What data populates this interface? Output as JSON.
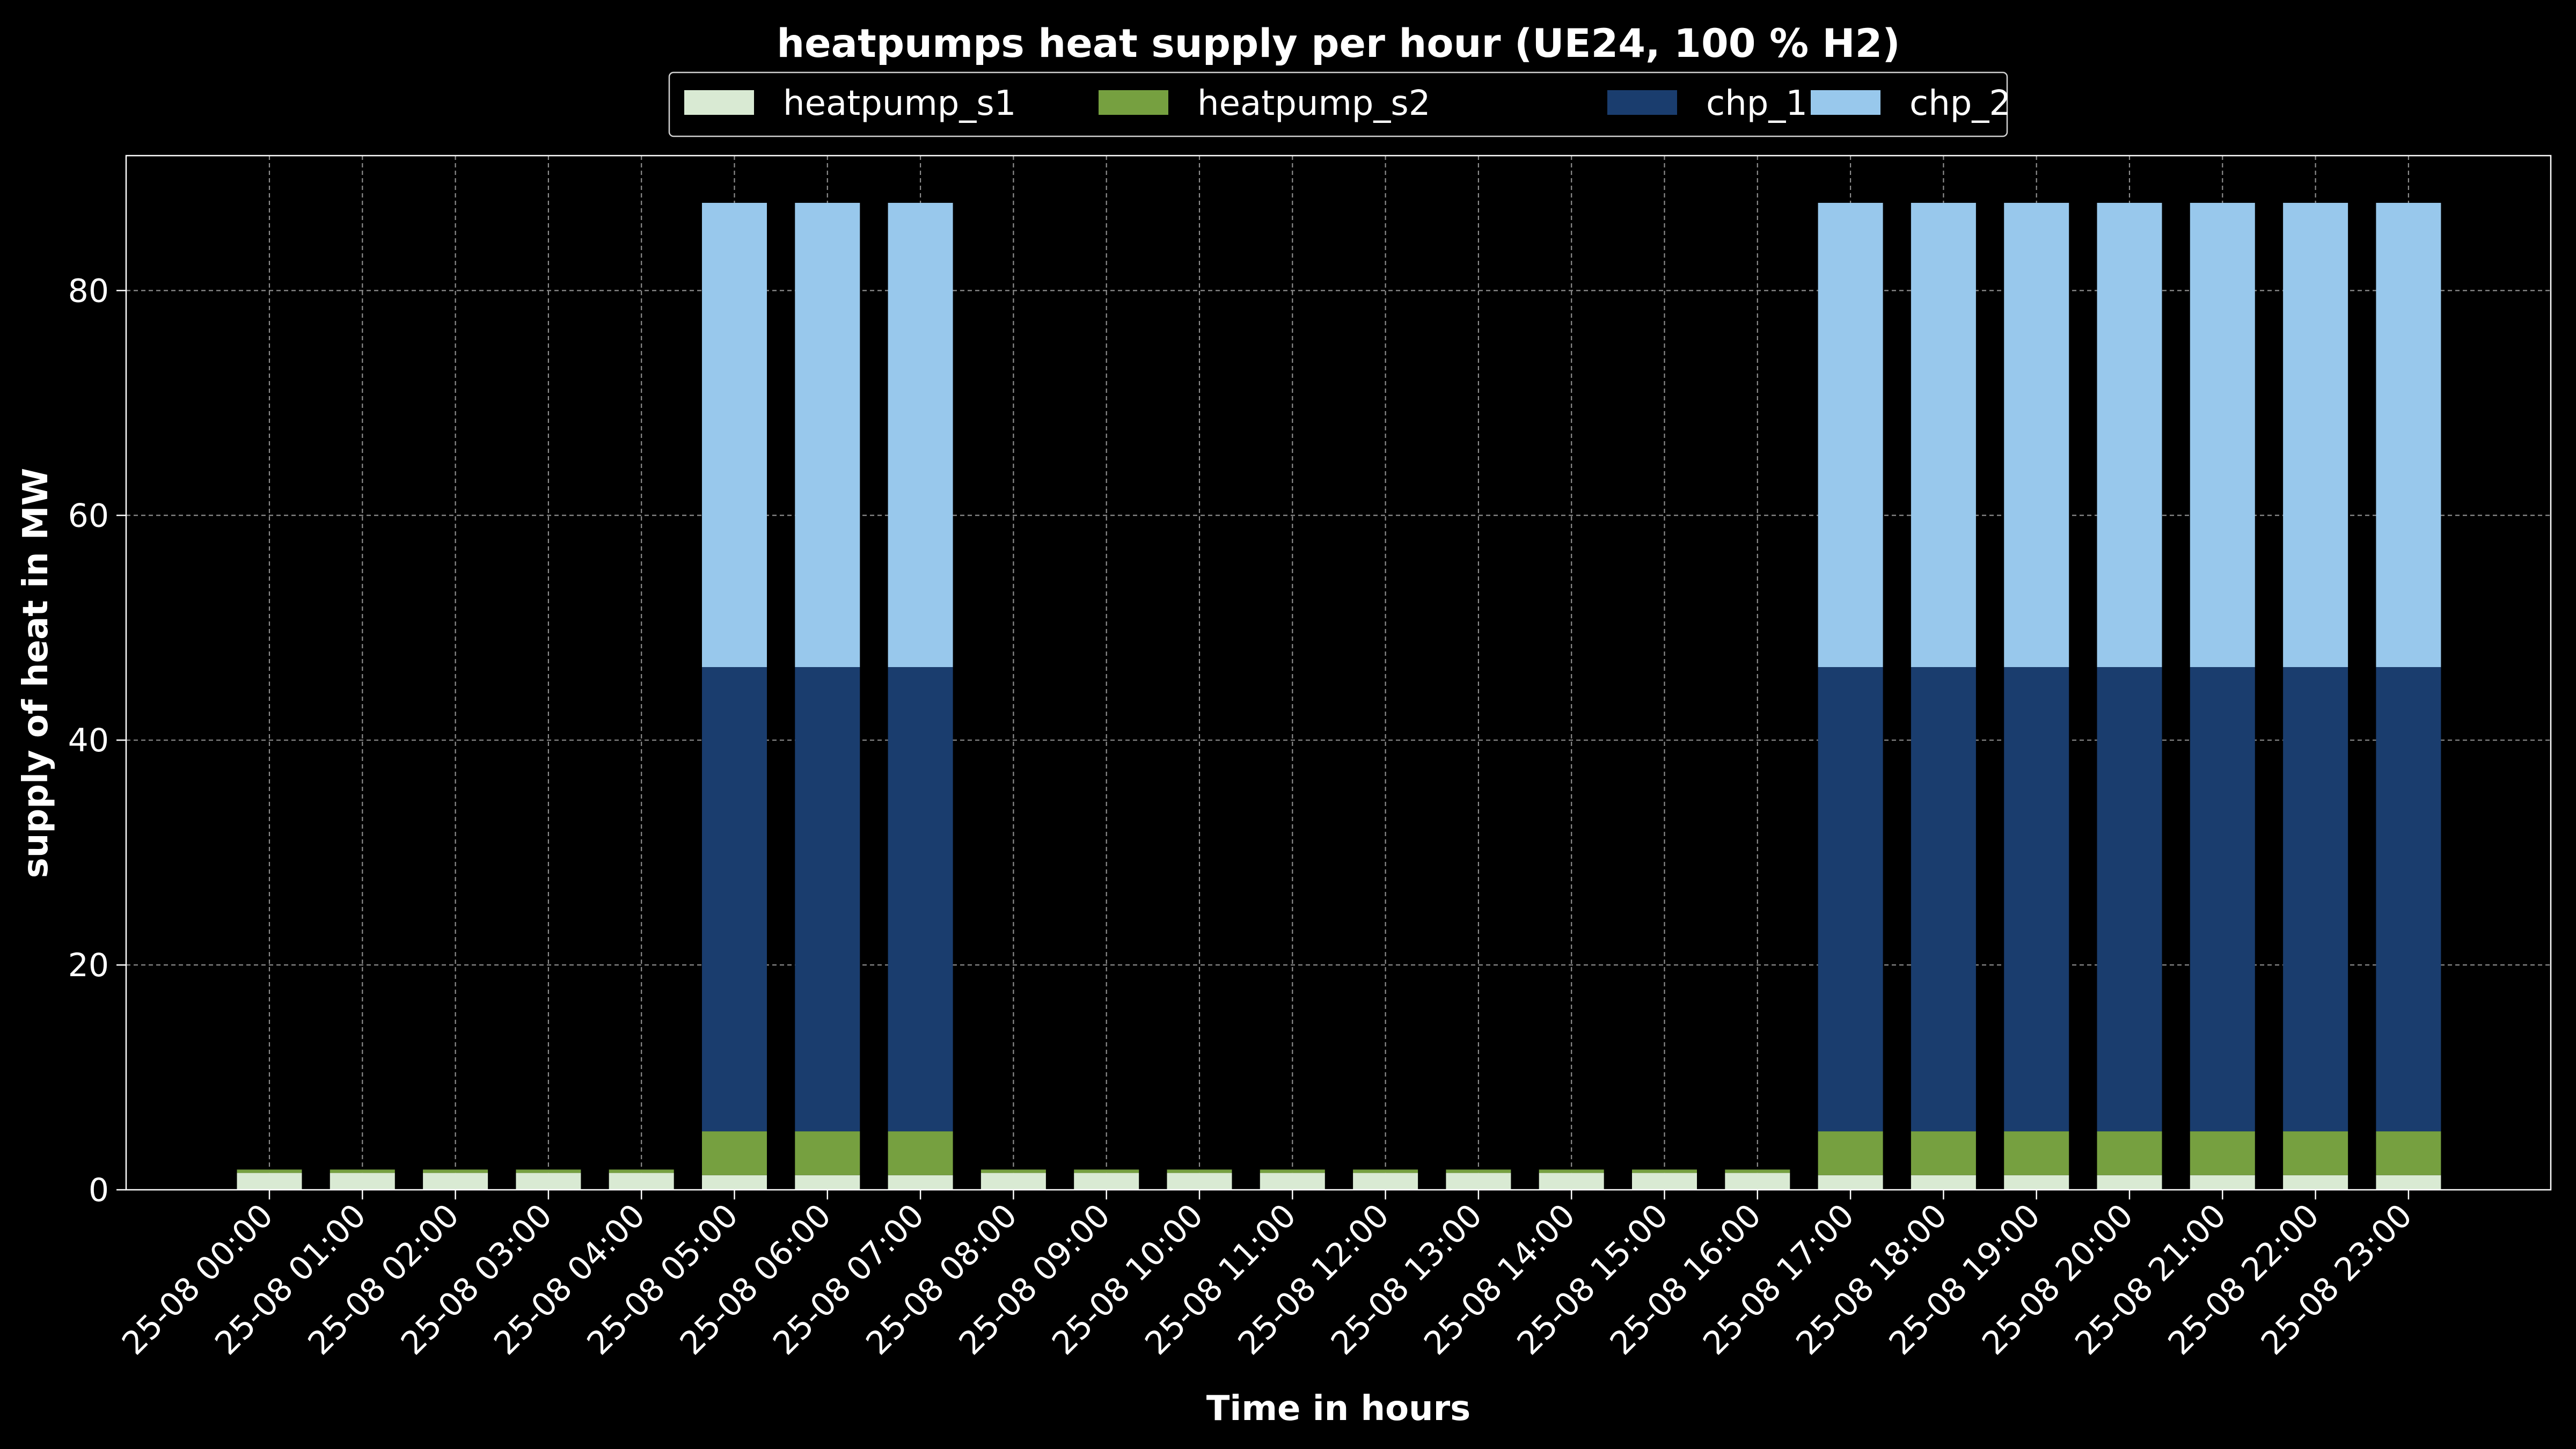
{
  "chart_data": {
    "type": "bar",
    "stacked": true,
    "title": "heatpumps heat supply per hour (UE24, 100 % H2)",
    "xlabel": "Time in hours",
    "ylabel": "supply of heat in MW",
    "ylim": [
      0,
      92
    ],
    "yticks": [
      0,
      20,
      40,
      60,
      80
    ],
    "grid": true,
    "legend_position": "top-center",
    "background": "#000000",
    "categories": [
      "25-08 00:00",
      "25-08 01:00",
      "25-08 02:00",
      "25-08 03:00",
      "25-08 04:00",
      "25-08 05:00",
      "25-08 06:00",
      "25-08 07:00",
      "25-08 08:00",
      "25-08 09:00",
      "25-08 10:00",
      "25-08 11:00",
      "25-08 12:00",
      "25-08 13:00",
      "25-08 14:00",
      "25-08 15:00",
      "25-08 16:00",
      "25-08 17:00",
      "25-08 18:00",
      "25-08 19:00",
      "25-08 20:00",
      "25-08 21:00",
      "25-08 22:00",
      "25-08 23:00"
    ],
    "series": [
      {
        "name": "heatpump_s1",
        "color": "#d9ead3",
        "values": [
          1.5,
          1.5,
          1.5,
          1.5,
          1.5,
          1.3,
          1.3,
          1.3,
          1.5,
          1.5,
          1.5,
          1.5,
          1.5,
          1.5,
          1.5,
          1.5,
          1.5,
          1.3,
          1.3,
          1.3,
          1.3,
          1.3,
          1.3,
          1.3
        ]
      },
      {
        "name": "heatpump_s2",
        "color": "#76a040",
        "values": [
          0.3,
          0.3,
          0.3,
          0.3,
          0.3,
          3.9,
          3.9,
          3.9,
          0.3,
          0.3,
          0.3,
          0.3,
          0.3,
          0.3,
          0.3,
          0.3,
          0.3,
          3.9,
          3.9,
          3.9,
          3.9,
          3.9,
          3.9,
          3.9
        ]
      },
      {
        "name": "chp_1",
        "color": "#1a3d6e",
        "values": [
          0,
          0,
          0,
          0,
          0,
          41.3,
          41.3,
          41.3,
          0,
          0,
          0,
          0,
          0,
          0,
          0,
          0,
          0,
          41.3,
          41.3,
          41.3,
          41.3,
          41.3,
          41.3,
          41.3
        ]
      },
      {
        "name": "chp_2",
        "color": "#98c8ec",
        "values": [
          0,
          0,
          0,
          0,
          0,
          41.3,
          41.3,
          41.3,
          0,
          0,
          0,
          0,
          0,
          0,
          0,
          0,
          0,
          41.3,
          41.3,
          41.3,
          41.3,
          41.3,
          41.3,
          41.3
        ]
      }
    ]
  }
}
